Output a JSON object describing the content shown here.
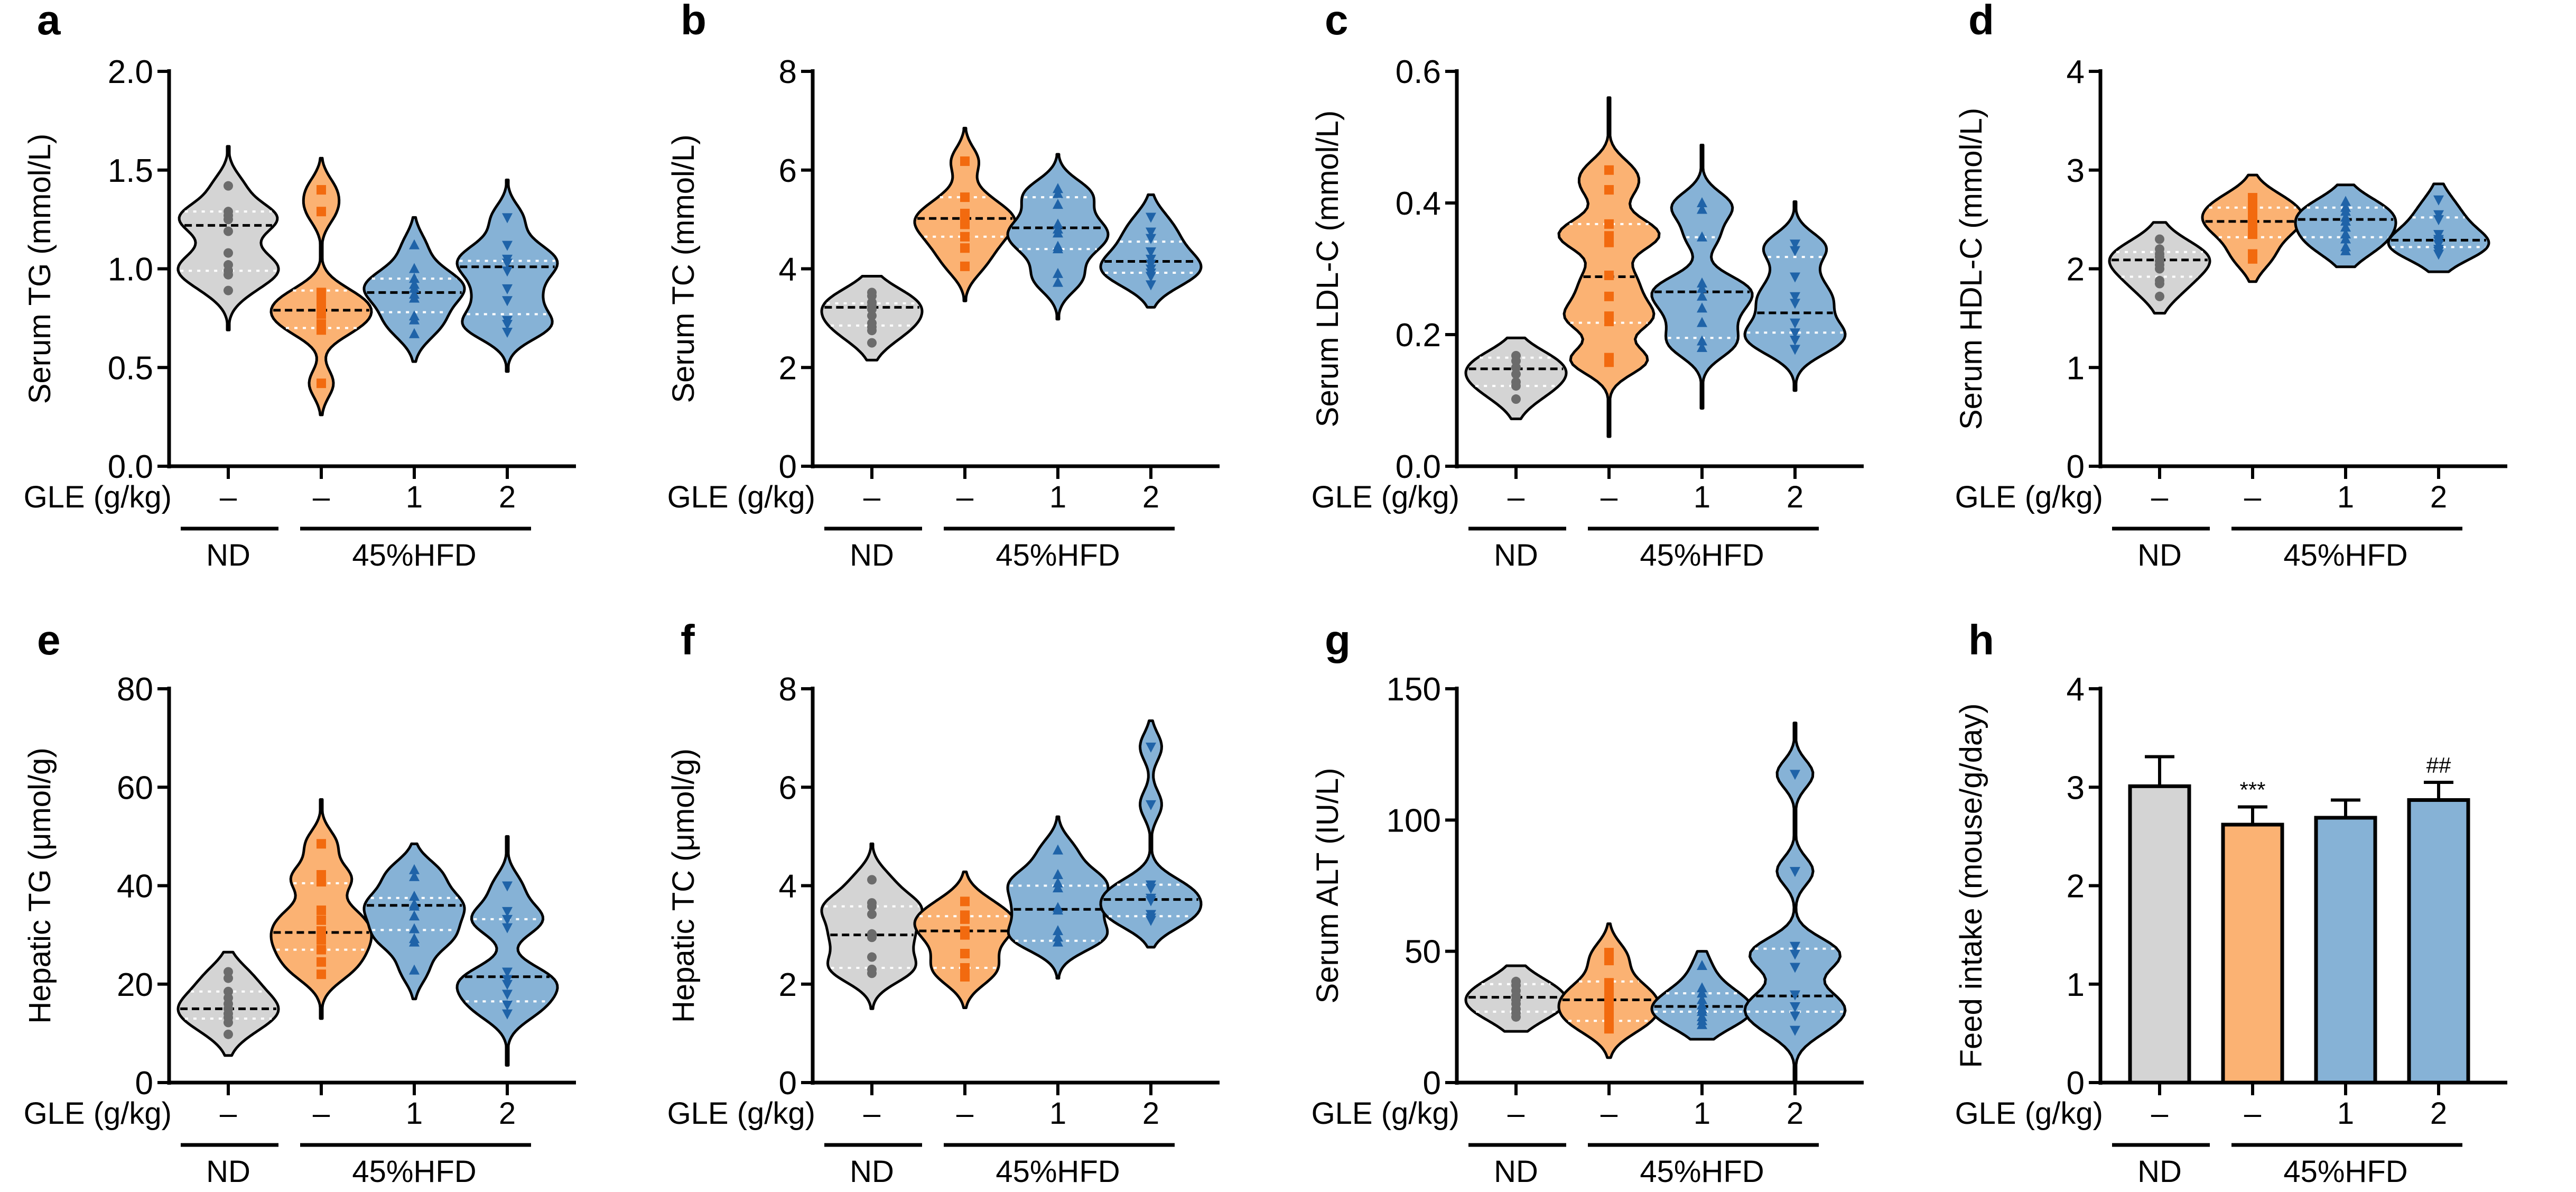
{
  "figure": {
    "group_row_label": "GLE (g/kg)",
    "diet_labels": [
      "ND",
      "45%HFD"
    ],
    "colors": {
      "ND": "#d4d4d4",
      "HFD": "#fbb273",
      "GLE1": "#86b2d6",
      "GLE2": "#86b2d6",
      "ND_points": "#6b6b6b",
      "HFD_points": "#f26a0f",
      "GLE_points": "#1f63a8"
    }
  },
  "chart_data": [
    {
      "panel": "a",
      "type": "violin",
      "ylabel": "Serum TG (mmol/L)",
      "ylim": [
        0,
        2.0
      ],
      "yticks": [
        0,
        0.5,
        1.0,
        1.5,
        2.0
      ],
      "ytick_labels": [
        "0.0",
        "0.5",
        "1.0",
        "1.5",
        "2.0"
      ],
      "categories": [
        "–",
        "–",
        "1",
        "2"
      ],
      "series": [
        {
          "name": "ND",
          "marker": "circle",
          "median": 1.22,
          "q1": 0.99,
          "q3": 1.29,
          "min_tail": 0.69,
          "max_tail": 1.62,
          "points": [
            1.42,
            1.29,
            1.27,
            1.25,
            1.19,
            1.08,
            1.02,
            0.99,
            0.97,
            0.89
          ]
        },
        {
          "name": "HFD",
          "marker": "square",
          "median": 0.79,
          "q1": 0.7,
          "q3": 0.89,
          "min_tail": 0.26,
          "max_tail": 1.56,
          "points": [
            1.4,
            1.29,
            0.88,
            0.84,
            0.8,
            0.77,
            0.72,
            0.69,
            0.42
          ]
        },
        {
          "name": "GLE 1",
          "marker": "triangle-up",
          "median": 0.88,
          "q1": 0.78,
          "q3": 0.95,
          "min_tail": 0.53,
          "max_tail": 1.26,
          "points": [
            1.12,
            1.0,
            0.95,
            0.92,
            0.9,
            0.87,
            0.85,
            0.76,
            0.74,
            0.67
          ]
        },
        {
          "name": "GLE 2",
          "marker": "triangle-down",
          "median": 1.01,
          "q1": 0.77,
          "q3": 1.04,
          "min_tail": 0.48,
          "max_tail": 1.45,
          "points": [
            1.26,
            1.12,
            1.05,
            1.03,
            0.99,
            0.9,
            0.84,
            0.74,
            0.72,
            0.68
          ]
        }
      ]
    },
    {
      "panel": "b",
      "type": "violin",
      "ylabel": "Serum TC (mmol/L)",
      "ylim": [
        0,
        8
      ],
      "yticks": [
        0,
        2,
        4,
        6,
        8
      ],
      "ytick_labels": [
        "0",
        "2",
        "4",
        "6",
        "8"
      ],
      "categories": [
        "–",
        "–",
        "1",
        "2"
      ],
      "series": [
        {
          "name": "ND",
          "marker": "circle",
          "median": 3.22,
          "q1": 2.85,
          "q3": 3.3,
          "min_tail": 2.15,
          "max_tail": 3.85,
          "points": [
            3.52,
            3.45,
            3.32,
            3.25,
            3.18,
            3.05,
            2.9,
            2.82,
            2.75,
            2.5
          ]
        },
        {
          "name": "HFD",
          "marker": "square",
          "median": 5.02,
          "q1": 4.65,
          "q3": 5.45,
          "min_tail": 3.35,
          "max_tail": 6.85,
          "points": [
            6.18,
            5.45,
            5.12,
            5.02,
            4.9,
            4.65,
            4.42,
            4.05
          ]
        },
        {
          "name": "GLE 1",
          "marker": "triangle-up",
          "median": 4.83,
          "q1": 4.4,
          "q3": 5.45,
          "min_tail": 2.98,
          "max_tail": 6.32,
          "points": [
            5.62,
            5.52,
            5.3,
            4.9,
            4.8,
            4.72,
            4.45,
            4.4,
            3.9,
            3.72
          ]
        },
        {
          "name": "GLE 2",
          "marker": "triangle-down",
          "median": 4.15,
          "q1": 3.92,
          "q3": 4.55,
          "min_tail": 3.22,
          "max_tail": 5.5,
          "points": [
            5.05,
            4.75,
            4.62,
            4.35,
            4.2,
            4.1,
            4.0,
            3.92,
            3.85,
            3.68
          ]
        }
      ]
    },
    {
      "panel": "c",
      "type": "violin",
      "ylabel": "Serum LDL-C (mmol/L)",
      "ylim": [
        0,
        0.6
      ],
      "yticks": [
        0,
        0.2,
        0.4,
        0.6
      ],
      "ytick_labels": [
        "0.0",
        "0.2",
        "0.4",
        "0.6"
      ],
      "categories": [
        "–",
        "–",
        "1",
        "2"
      ],
      "series": [
        {
          "name": "ND",
          "marker": "circle",
          "median": 0.148,
          "q1": 0.122,
          "q3": 0.165,
          "min_tail": 0.072,
          "max_tail": 0.195,
          "points": [
            0.168,
            0.16,
            0.15,
            0.14,
            0.128,
            0.122,
            0.102
          ]
        },
        {
          "name": "HFD",
          "marker": "square",
          "median": 0.288,
          "q1": 0.218,
          "q3": 0.368,
          "min_tail": 0.045,
          "max_tail": 0.56,
          "points": [
            0.45,
            0.42,
            0.368,
            0.35,
            0.34,
            0.29,
            0.258,
            0.228,
            0.22,
            0.165,
            0.158
          ]
        },
        {
          "name": "GLE 1",
          "marker": "triangle-up",
          "median": 0.265,
          "q1": 0.195,
          "q3": 0.348,
          "min_tail": 0.088,
          "max_tail": 0.488,
          "points": [
            0.4,
            0.39,
            0.348,
            0.278,
            0.27,
            0.258,
            0.24,
            0.218,
            0.19,
            0.18
          ]
        },
        {
          "name": "GLE 2",
          "marker": "triangle-down",
          "median": 0.233,
          "q1": 0.203,
          "q3": 0.318,
          "min_tail": 0.115,
          "max_tail": 0.402,
          "points": [
            0.338,
            0.328,
            0.288,
            0.258,
            0.248,
            0.218,
            0.203,
            0.192,
            0.178
          ]
        }
      ]
    },
    {
      "panel": "d",
      "type": "violin",
      "ylabel": "Serum HDL-C (mmol/L)",
      "ylim": [
        0,
        4
      ],
      "yticks": [
        0,
        1,
        2,
        3,
        4
      ],
      "ytick_labels": [
        "0",
        "1",
        "2",
        "3",
        "4"
      ],
      "categories": [
        "–",
        "–",
        "1",
        "2"
      ],
      "series": [
        {
          "name": "ND",
          "marker": "circle",
          "median": 2.09,
          "q1": 1.92,
          "q3": 2.17,
          "min_tail": 1.55,
          "max_tail": 2.47,
          "points": [
            2.3,
            2.2,
            2.15,
            2.12,
            2.08,
            2.04,
            2.0,
            1.88,
            1.85,
            1.72
          ]
        },
        {
          "name": "HFD",
          "marker": "square",
          "median": 2.48,
          "q1": 2.32,
          "q3": 2.62,
          "min_tail": 1.87,
          "max_tail": 2.95,
          "points": [
            2.72,
            2.68,
            2.62,
            2.55,
            2.5,
            2.45,
            2.4,
            2.35,
            2.15,
            2.1
          ]
        },
        {
          "name": "GLE 1",
          "marker": "triangle-up",
          "median": 2.5,
          "q1": 2.32,
          "q3": 2.62,
          "min_tail": 2.02,
          "max_tail": 2.85,
          "points": [
            2.68,
            2.62,
            2.58,
            2.52,
            2.48,
            2.42,
            2.35,
            2.3,
            2.22,
            2.18
          ]
        },
        {
          "name": "GLE 2",
          "marker": "triangle-down",
          "median": 2.29,
          "q1": 2.22,
          "q3": 2.52,
          "min_tail": 1.97,
          "max_tail": 2.86,
          "points": [
            2.7,
            2.55,
            2.5,
            2.35,
            2.3,
            2.28,
            2.25,
            2.2,
            2.18,
            2.15
          ]
        }
      ]
    },
    {
      "panel": "e",
      "type": "violin",
      "ylabel": "Hepatic TG (μmol/g)",
      "ylim": [
        0,
        80
      ],
      "yticks": [
        0,
        20,
        40,
        60,
        80
      ],
      "ytick_labels": [
        "0",
        "20",
        "40",
        "60",
        "80"
      ],
      "categories": [
        "–",
        "–",
        "1",
        "2"
      ],
      "series": [
        {
          "name": "ND",
          "marker": "circle",
          "median": 15.0,
          "q1": 13.0,
          "q3": 18.5,
          "min_tail": 5.5,
          "max_tail": 26.5,
          "points": [
            22.5,
            21.2,
            18.5,
            17.2,
            16.0,
            15.0,
            14.0,
            13.2,
            12.2,
            9.8
          ]
        },
        {
          "name": "HFD",
          "marker": "square",
          "median": 30.5,
          "q1": 27.0,
          "q3": 40.5,
          "min_tail": 13.0,
          "max_tail": 57.5,
          "points": [
            48.5,
            42.2,
            40.8,
            35.0,
            33.0,
            30.8,
            29.0,
            27.0,
            24.5,
            22.0
          ]
        },
        {
          "name": "GLE 1",
          "marker": "triangle-up",
          "median": 36.0,
          "q1": 31.0,
          "q3": 37.5,
          "min_tail": 17.0,
          "max_tail": 48.5,
          "points": [
            43.2,
            41.8,
            37.8,
            36.2,
            35.8,
            33.8,
            31.2,
            29.2,
            28.5,
            22.8
          ]
        },
        {
          "name": "GLE 2",
          "marker": "triangle-down",
          "median": 21.5,
          "q1": 16.5,
          "q3": 33.2,
          "min_tail": 3.5,
          "max_tail": 50.0,
          "points": [
            40.0,
            34.8,
            33.2,
            31.5,
            22.5,
            21.0,
            20.0,
            18.0,
            15.8,
            14.0
          ]
        }
      ]
    },
    {
      "panel": "f",
      "type": "violin",
      "ylabel": "Hepatic TC (μmol/g)",
      "ylim": [
        0,
        8
      ],
      "yticks": [
        0,
        2,
        4,
        6,
        8
      ],
      "ytick_labels": [
        "0",
        "2",
        "4",
        "6",
        "8"
      ],
      "categories": [
        "–",
        "–",
        "1",
        "2"
      ],
      "series": [
        {
          "name": "ND",
          "marker": "circle",
          "median": 3.0,
          "q1": 2.33,
          "q3": 3.58,
          "min_tail": 1.5,
          "max_tail": 4.85,
          "points": [
            4.12,
            3.65,
            3.58,
            3.42,
            3.02,
            2.95,
            2.55,
            2.3,
            2.22
          ]
        },
        {
          "name": "HFD",
          "marker": "square",
          "median": 3.08,
          "q1": 2.33,
          "q3": 3.38,
          "min_tail": 1.52,
          "max_tail": 4.28,
          "points": [
            3.68,
            3.4,
            3.32,
            3.08,
            3.0,
            2.62,
            2.33,
            2.15
          ]
        },
        {
          "name": "GLE 1",
          "marker": "triangle-up",
          "median": 3.52,
          "q1": 2.88,
          "q3": 4.0,
          "min_tail": 2.12,
          "max_tail": 5.4,
          "points": [
            4.72,
            4.22,
            4.05,
            3.95,
            3.55,
            3.5,
            3.08,
            2.95,
            2.85
          ]
        },
        {
          "name": "GLE 2",
          "marker": "triangle-down",
          "median": 3.72,
          "q1": 3.38,
          "q3": 4.02,
          "min_tail": 2.75,
          "max_tail": 7.35,
          "points": [
            6.82,
            5.65,
            4.02,
            3.95,
            3.75,
            3.7,
            3.42,
            3.35,
            3.3
          ]
        }
      ]
    },
    {
      "panel": "g",
      "type": "violin",
      "ylabel": "Serum ALT (IU/L)",
      "ylim": [
        0,
        150
      ],
      "yticks": [
        0,
        50,
        100,
        150
      ],
      "ytick_labels": [
        "0",
        "50",
        "100",
        "150"
      ],
      "categories": [
        "–",
        "–",
        "1",
        "2"
      ],
      "series": [
        {
          "name": "ND",
          "marker": "circle",
          "median": 32.5,
          "q1": 27.0,
          "q3": 37.5,
          "min_tail": 19.5,
          "max_tail": 44.5,
          "points": [
            38.5,
            37.0,
            35.0,
            33.0,
            31.5,
            30.0,
            28.0,
            26.5,
            25.0
          ]
        },
        {
          "name": "HFD",
          "marker": "square",
          "median": 31.5,
          "q1": 23.5,
          "q3": 38.5,
          "min_tail": 9.5,
          "max_tail": 60.5,
          "points": [
            49.5,
            46.5,
            38.0,
            35.5,
            33.5,
            31.0,
            29.0,
            27.0,
            24.5,
            22.0,
            20.5
          ]
        },
        {
          "name": "GLE 1",
          "marker": "triangle-up",
          "median": 29.0,
          "q1": 27.0,
          "q3": 34.0,
          "min_tail": 16.5,
          "max_tail": 50.0,
          "points": [
            44.5,
            36.0,
            34.0,
            31.5,
            29.5,
            28.0,
            27.0,
            25.0,
            23.5,
            22.0
          ]
        },
        {
          "name": "GLE 2",
          "marker": "triangle-down",
          "median": 33.0,
          "q1": 27.0,
          "q3": 51.0,
          "min_tail": 0.0,
          "max_tail": 137.0,
          "points": [
            117.5,
            80.5,
            52.0,
            49.0,
            44.0,
            33.5,
            29.0,
            25.5,
            20.0
          ]
        }
      ]
    },
    {
      "panel": "h",
      "type": "bar",
      "ylabel": "Feed intake (mouse/g/day)",
      "ylim": [
        0,
        4
      ],
      "yticks": [
        0,
        1,
        2,
        3,
        4
      ],
      "ytick_labels": [
        "0",
        "1",
        "2",
        "3",
        "4"
      ],
      "categories": [
        "–",
        "–",
        "1",
        "2"
      ],
      "series": [
        {
          "name": "ND",
          "value": 3.01,
          "error": 0.3,
          "annotation": ""
        },
        {
          "name": "HFD",
          "value": 2.62,
          "error": 0.18,
          "annotation": "***"
        },
        {
          "name": "GLE 1",
          "value": 2.69,
          "error": 0.18,
          "annotation": ""
        },
        {
          "name": "GLE 2",
          "value": 2.87,
          "error": 0.18,
          "annotation": "##"
        }
      ]
    }
  ]
}
